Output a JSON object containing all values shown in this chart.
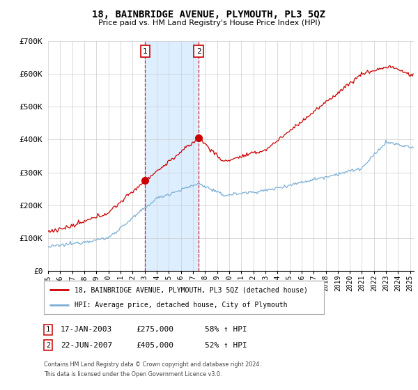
{
  "title": "18, BAINBRIDGE AVENUE, PLYMOUTH, PL3 5QZ",
  "subtitle": "Price paid vs. HM Land Registry's House Price Index (HPI)",
  "legend_line1": "18, BAINBRIDGE AVENUE, PLYMOUTH, PL3 5QZ (detached house)",
  "legend_line2": "HPI: Average price, detached house, City of Plymouth",
  "footnote1": "Contains HM Land Registry data © Crown copyright and database right 2024.",
  "footnote2": "This data is licensed under the Open Government Licence v3.0.",
  "transaction1_date": "17-JAN-2003",
  "transaction1_price": "£275,000",
  "transaction1_hpi": "58% ↑ HPI",
  "transaction1_x": 2003.04,
  "transaction1_y": 275000,
  "transaction2_date": "22-JUN-2007",
  "transaction2_price": "£405,000",
  "transaction2_hpi": "52% ↑ HPI",
  "transaction2_x": 2007.47,
  "transaction2_y": 405000,
  "shade_x1": 2003.04,
  "shade_x2": 2007.47,
  "ylim": [
    0,
    700000
  ],
  "yticks": [
    0,
    100000,
    200000,
    300000,
    400000,
    500000,
    600000,
    700000
  ],
  "ytick_labels": [
    "£0",
    "£100K",
    "£200K",
    "£300K",
    "£400K",
    "£500K",
    "£600K",
    "£700K"
  ],
  "line_color_red": "#cc0000",
  "line_color_blue": "#7bafd4",
  "shade_color": "#ddeeff",
  "vline_color": "#cc0000",
  "background_color": "#ffffff",
  "grid_color": "#cccccc",
  "xlim_left": 1995.0,
  "xlim_right": 2025.3
}
